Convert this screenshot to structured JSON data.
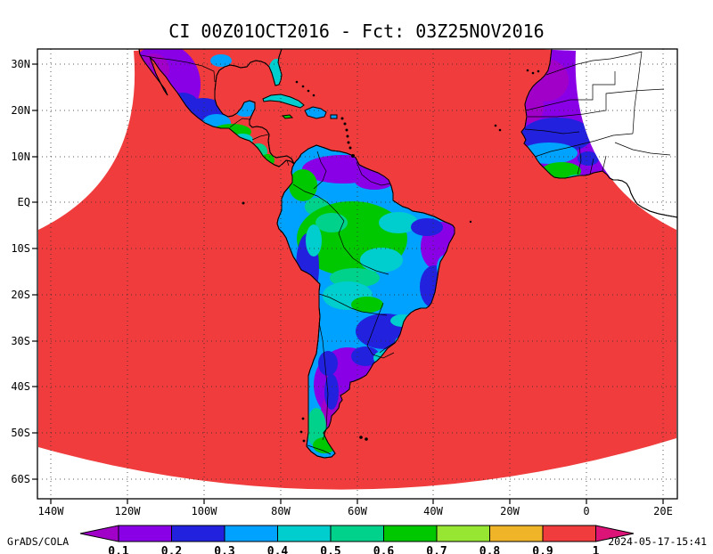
{
  "title": "CI 00Z01OCT2016 - Fct: 03Z25NOV2016",
  "axes": {
    "lat_labels": [
      "30N",
      "20N",
      "10N",
      "EQ",
      "10S",
      "20S",
      "30S",
      "40S",
      "50S",
      "60S"
    ],
    "lon_labels": [
      "140W",
      "120W",
      "100W",
      "80W",
      "60W",
      "40W",
      "20W",
      "0",
      "20E"
    ]
  },
  "palette": {
    "purple_dark": "#a000c8",
    "purple": "#8a00e6",
    "blue": "#2121de",
    "blue_light": "#00a2ff",
    "cyan": "#00cdcd",
    "aqua_green": "#00d28c",
    "green": "#00c800",
    "yellow_green": "#96e632",
    "orange": "#f0b428",
    "red": "#f03c3c",
    "magenta": "#dc1478",
    "white": "#ffffff"
  },
  "colorbar": {
    "tick_labels": [
      "0.1",
      "0.2",
      "0.3",
      "0.4",
      "0.5",
      "0.6",
      "0.7",
      "0.8",
      "0.9",
      "1"
    ],
    "band_order": [
      "purple_dark",
      "purple",
      "blue",
      "blue_light",
      "cyan",
      "aqua_green",
      "green",
      "yellow_green",
      "orange",
      "red",
      "magenta"
    ]
  },
  "footer": {
    "left": "GrADS/COLA",
    "right": "2024-05-17-15:41"
  },
  "chart_data": {
    "type": "heatmap",
    "subtype": "filled-contour-map",
    "title": "CI 00Z01OCT2016 - Fct: 03Z25NOV2016",
    "variable": "CI",
    "init_label": "00Z01OCT2016",
    "forecast_label": "03Z25NOV2016",
    "levels": [
      0.1,
      0.2,
      0.3,
      0.4,
      0.5,
      0.6,
      0.7,
      0.8,
      0.9,
      1
    ],
    "band_colors": [
      "#a000c8",
      "#8a00e6",
      "#2121de",
      "#00a2ff",
      "#00cdcd",
      "#00d28c",
      "#00c800",
      "#96e632",
      "#f0b428",
      "#f03c3c",
      "#dc1478"
    ],
    "x_ticks": [
      "140W",
      "120W",
      "100W",
      "80W",
      "60W",
      "40W",
      "20W",
      "0",
      "20E"
    ],
    "y_ticks": [
      "30N",
      "20N",
      "10N",
      "EQ",
      "10S",
      "20S",
      "30S",
      "40S",
      "50S",
      "60S"
    ],
    "legend_position": "bottom",
    "grid": true,
    "value_summary": [
      {
        "region": "ocean and most of curved model domain",
        "value": 1
      },
      {
        "region": "South America interior (Amazon basin)",
        "value": "0.4-0.7"
      },
      {
        "region": "Venezuela, NE Brazil tip, Argentina",
        "value": "0.1-0.3"
      },
      {
        "region": "NW Mexico",
        "value": "0.1-0.3"
      },
      {
        "region": "central Mexico and Central America",
        "value": "0.3-0.6"
      },
      {
        "region": "West Africa (Senegal/Mauritania)",
        "value": "0.1-0.4"
      }
    ]
  }
}
